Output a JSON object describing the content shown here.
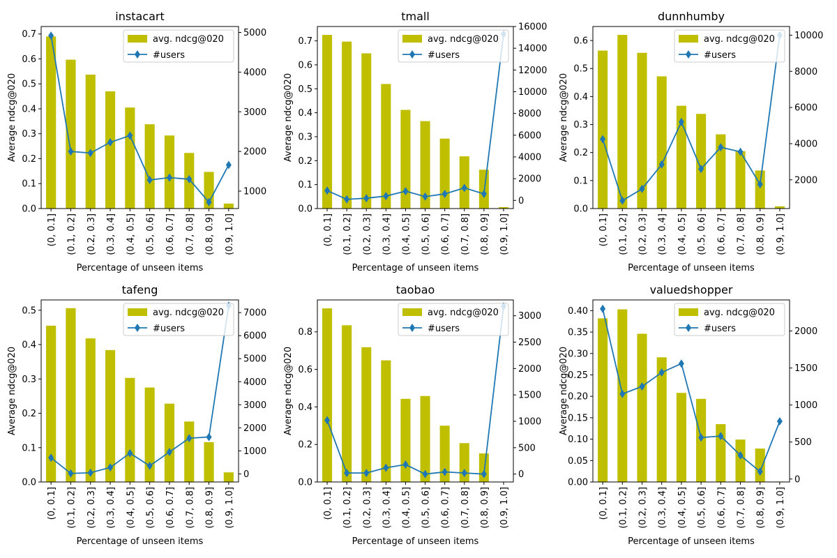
{
  "chart_data": [
    {
      "type": "bar",
      "title": "instacart",
      "xlabel": "Percentage of unseen items",
      "ylabel": "Average ndcg@020",
      "categories": [
        "(0, 0.1]",
        "(0.1, 0.2]",
        "(0.2, 0.3]",
        "(0.3, 0.4]",
        "(0.4, 0.5]",
        "(0.5, 0.6]",
        "(0.6, 0.7]",
        "(0.7, 0.8]",
        "(0.8, 0.9]",
        "(0.9, 1.0]"
      ],
      "ylim": [
        0,
        0.73
      ],
      "yticks": [
        0.0,
        0.1,
        0.2,
        0.3,
        0.4,
        0.5,
        0.6,
        0.7
      ],
      "y2lim": [
        560,
        5150
      ],
      "y2ticks": [
        1000,
        2000,
        3000,
        4000,
        5000
      ],
      "series": [
        {
          "name": "avg. ndcg@020",
          "kind": "bar",
          "axis": "left",
          "values": [
            0.69,
            0.597,
            0.537,
            0.47,
            0.405,
            0.338,
            0.293,
            0.223,
            0.147,
            0.02
          ]
        },
        {
          "name": "#users",
          "kind": "line",
          "axis": "right",
          "values": [
            4920,
            2000,
            1960,
            2230,
            2400,
            1280,
            1340,
            1300,
            720,
            1660
          ]
        }
      ],
      "legend": "top-right",
      "colors": {
        "bar": "#bfbf00",
        "line": "#1f77b4"
      }
    },
    {
      "type": "bar",
      "title": "tmall",
      "xlabel": "Percentage of unseen items",
      "ylabel": "Average ndcg@020",
      "categories": [
        "(0, 0.1]",
        "(0.1, 0.2]",
        "(0.2, 0.3]",
        "(0.3, 0.4]",
        "(0.4, 0.5]",
        "(0.5, 0.6]",
        "(0.6, 0.7]",
        "(0.7, 0.8]",
        "(0.8, 0.9]",
        "(0.9, 1.0]"
      ],
      "ylim": [
        0,
        0.76
      ],
      "yticks": [
        0.0,
        0.1,
        0.2,
        0.3,
        0.4,
        0.5,
        0.6,
        0.7
      ],
      "y2lim": [
        -750,
        16000
      ],
      "y2ticks": [
        0,
        2000,
        4000,
        6000,
        8000,
        10000,
        12000,
        14000,
        16000
      ],
      "series": [
        {
          "name": "avg. ndcg@020",
          "kind": "bar",
          "axis": "left",
          "values": [
            0.725,
            0.697,
            0.648,
            0.52,
            0.412,
            0.365,
            0.292,
            0.218,
            0.162,
            0.006
          ]
        },
        {
          "name": "#users",
          "kind": "line",
          "axis": "right",
          "values": [
            900,
            100,
            200,
            400,
            850,
            350,
            600,
            1150,
            600,
            15300
          ]
        }
      ],
      "legend": "top-right",
      "colors": {
        "bar": "#bfbf00",
        "line": "#1f77b4"
      }
    },
    {
      "type": "bar",
      "title": "dunnhumby",
      "xlabel": "Percentage of unseen items",
      "ylabel": "Average ndcg@020",
      "categories": [
        "(0, 0.1]",
        "(0.1, 0.2]",
        "(0.2, 0.3]",
        "(0.3, 0.4]",
        "(0.4, 0.5]",
        "(0.5, 0.6]",
        "(0.6, 0.7]",
        "(0.7, 0.8]",
        "(0.8, 0.9]",
        "(0.9, 1.0]"
      ],
      "ylim": [
        0,
        0.65
      ],
      "yticks": [
        0.0,
        0.1,
        0.2,
        0.3,
        0.4,
        0.5,
        0.6
      ],
      "y2lim": [
        410,
        10480
      ],
      "y2ticks": [
        2000,
        4000,
        6000,
        8000,
        10000
      ],
      "series": [
        {
          "name": "avg. ndcg@020",
          "kind": "bar",
          "axis": "left",
          "values": [
            0.564,
            0.62,
            0.556,
            0.472,
            0.367,
            0.338,
            0.265,
            0.205,
            0.136,
            0.008
          ]
        },
        {
          "name": "#users",
          "kind": "line",
          "axis": "right",
          "values": [
            4250,
            850,
            1500,
            2850,
            5200,
            2600,
            3800,
            3550,
            1750,
            10000
          ]
        }
      ],
      "legend": "top-right",
      "colors": {
        "bar": "#bfbf00",
        "line": "#1f77b4"
      }
    },
    {
      "type": "bar",
      "title": "tafeng",
      "xlabel": "Percentage of unseen items",
      "ylabel": "Average ndcg@020",
      "categories": [
        "(0, 0.1]",
        "(0.1, 0.2]",
        "(0.2, 0.3]",
        "(0.3, 0.4]",
        "(0.4, 0.5]",
        "(0.5, 0.6]",
        "(0.6, 0.7]",
        "(0.7, 0.8]",
        "(0.8, 0.9]",
        "(0.9, 1.0]"
      ],
      "ylim": [
        0,
        0.53
      ],
      "yticks": [
        0.0,
        0.1,
        0.2,
        0.3,
        0.4,
        0.5
      ],
      "y2lim": [
        -350,
        7550
      ],
      "y2ticks": [
        0,
        1000,
        2000,
        3000,
        4000,
        5000,
        6000,
        7000
      ],
      "series": [
        {
          "name": "avg. ndcg@020",
          "kind": "bar",
          "axis": "left",
          "values": [
            0.455,
            0.506,
            0.418,
            0.384,
            0.303,
            0.275,
            0.228,
            0.176,
            0.116,
            0.028
          ]
        },
        {
          "name": "#users",
          "kind": "line",
          "axis": "right",
          "values": [
            700,
            20,
            50,
            280,
            900,
            350,
            950,
            1550,
            1600,
            7300
          ]
        }
      ],
      "legend": "top-right",
      "colors": {
        "bar": "#bfbf00",
        "line": "#1f77b4"
      }
    },
    {
      "type": "bar",
      "title": "taobao",
      "xlabel": "Percentage of unseen items",
      "ylabel": "Average ndcg@020",
      "categories": [
        "(0, 0.1]",
        "(0.1, 0.2]",
        "(0.2, 0.3]",
        "(0.3, 0.4]",
        "(0.4, 0.5]",
        "(0.5, 0.6]",
        "(0.6, 0.7]",
        "(0.7, 0.8]",
        "(0.8, 0.9]",
        "(0.9, 1.0]"
      ],
      "ylim": [
        0,
        0.97
      ],
      "yticks": [
        0.0,
        0.2,
        0.4,
        0.6,
        0.8
      ],
      "y2lim": [
        -150,
        3300
      ],
      "y2ticks": [
        0,
        500,
        1000,
        1500,
        2000,
        2500,
        3000
      ],
      "series": [
        {
          "name": "avg. ndcg@020",
          "kind": "bar",
          "axis": "left",
          "values": [
            0.925,
            0.835,
            0.718,
            0.648,
            0.443,
            0.458,
            0.3,
            0.207,
            0.152,
            0.0
          ]
        },
        {
          "name": "#users",
          "kind": "line",
          "axis": "right",
          "values": [
            1020,
            20,
            20,
            120,
            180,
            0,
            40,
            20,
            0,
            3180
          ]
        }
      ],
      "legend": "top-right",
      "colors": {
        "bar": "#bfbf00",
        "line": "#1f77b4"
      }
    },
    {
      "type": "bar",
      "title": "valuedshopper",
      "xlabel": "Percentage of unseen items",
      "ylabel": "Average ndcg@020",
      "categories": [
        "(0, 0.1]",
        "(0.1, 0.2]",
        "(0.2, 0.3]",
        "(0.3, 0.4]",
        "(0.4, 0.5]",
        "(0.5, 0.6]",
        "(0.6, 0.7]",
        "(0.7, 0.8]",
        "(0.8, 0.9]",
        "(0.9, 1.0]"
      ],
      "ylim": [
        0,
        0.425
      ],
      "yticks": [
        0.0,
        0.05,
        0.1,
        0.15,
        0.2,
        0.25,
        0.3,
        0.35,
        0.4
      ],
      "y2lim": [
        -40,
        2420
      ],
      "y2ticks": [
        0,
        500,
        1000,
        1500,
        2000
      ],
      "series": [
        {
          "name": "avg. ndcg@020",
          "kind": "bar",
          "axis": "left",
          "values": [
            0.382,
            0.403,
            0.346,
            0.291,
            0.208,
            0.194,
            0.135,
            0.099,
            0.078,
            0.001
          ]
        },
        {
          "name": "#users",
          "kind": "line",
          "axis": "right",
          "values": [
            2300,
            1150,
            1250,
            1440,
            1560,
            560,
            580,
            320,
            100,
            780
          ]
        }
      ],
      "legend": "top-right",
      "colors": {
        "bar": "#bfbf00",
        "line": "#1f77b4"
      }
    }
  ]
}
